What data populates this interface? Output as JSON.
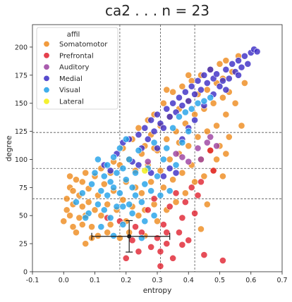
{
  "chart_data": {
    "type": "scatter",
    "title": "ca2 . . . n = 23",
    "xlabel": "entropy",
    "ylabel": "degree",
    "xlim": [
      -0.1,
      0.7
    ],
    "ylim": [
      0,
      220
    ],
    "xticks": [
      "-0.1",
      "0.0",
      "0.1",
      "0.2",
      "0.3",
      "0.4",
      "0.5",
      "0.6",
      "0.7"
    ],
    "yticks": [
      "0",
      "25",
      "50",
      "75",
      "100",
      "125",
      "150",
      "175",
      "200"
    ],
    "grid": false,
    "legend": {
      "title": "affil",
      "placement": "top-left"
    },
    "vertical_lines": [
      0.18,
      0.31,
      0.42
    ],
    "horizontal_lines": [
      65,
      92,
      124
    ],
    "series": [
      {
        "name": "Somatomotor",
        "color": "#ee8a1c",
        "points": [
          [
            0.0,
            45
          ],
          [
            0.01,
            55
          ],
          [
            0.01,
            65
          ],
          [
            0.02,
            50
          ],
          [
            0.02,
            75
          ],
          [
            0.03,
            40
          ],
          [
            0.03,
            60
          ],
          [
            0.03,
            72
          ],
          [
            0.04,
            35
          ],
          [
            0.04,
            82
          ],
          [
            0.05,
            48
          ],
          [
            0.05,
            68
          ],
          [
            0.06,
            58
          ],
          [
            0.06,
            80
          ],
          [
            0.07,
            25
          ],
          [
            0.07,
            50
          ],
          [
            0.07,
            88
          ],
          [
            0.08,
            62
          ],
          [
            0.08,
            74
          ],
          [
            0.09,
            40
          ],
          [
            0.1,
            55
          ],
          [
            0.1,
            85
          ],
          [
            0.11,
            68
          ],
          [
            0.12,
            50
          ],
          [
            0.12,
            92
          ],
          [
            0.13,
            78
          ],
          [
            0.14,
            60
          ],
          [
            0.15,
            88
          ],
          [
            0.15,
            42
          ],
          [
            0.16,
            72
          ],
          [
            0.17,
            55
          ],
          [
            0.18,
            95
          ],
          [
            0.19,
            64
          ],
          [
            0.19,
            110
          ],
          [
            0.2,
            45
          ],
          [
            0.2,
            80
          ],
          [
            0.21,
            100
          ],
          [
            0.22,
            58
          ],
          [
            0.22,
            118
          ],
          [
            0.23,
            75
          ],
          [
            0.23,
            90
          ],
          [
            0.24,
            50
          ],
          [
            0.24,
            128
          ],
          [
            0.25,
            105
          ],
          [
            0.25,
            70
          ],
          [
            0.26,
            112
          ],
          [
            0.26,
            55
          ],
          [
            0.27,
            135
          ],
          [
            0.27,
            95
          ],
          [
            0.28,
            80
          ],
          [
            0.28,
            122
          ],
          [
            0.29,
            60
          ],
          [
            0.29,
            140
          ],
          [
            0.3,
            108
          ],
          [
            0.3,
            45
          ],
          [
            0.31,
            130
          ],
          [
            0.31,
            90
          ],
          [
            0.32,
            150
          ],
          [
            0.32,
            75
          ],
          [
            0.33,
            118
          ],
          [
            0.33,
            55
          ],
          [
            0.34,
            138
          ],
          [
            0.34,
            100
          ],
          [
            0.35,
            160
          ],
          [
            0.35,
            82
          ],
          [
            0.36,
            125
          ],
          [
            0.36,
            62
          ],
          [
            0.37,
            145
          ],
          [
            0.37,
            105
          ],
          [
            0.38,
            165
          ],
          [
            0.38,
            88
          ],
          [
            0.39,
            132
          ],
          [
            0.39,
            70
          ],
          [
            0.4,
            152
          ],
          [
            0.4,
            112
          ],
          [
            0.41,
            170
          ],
          [
            0.41,
            95
          ],
          [
            0.42,
            140
          ],
          [
            0.42,
            80
          ],
          [
            0.43,
            158
          ],
          [
            0.43,
            120
          ],
          [
            0.44,
            175
          ],
          [
            0.44,
            100
          ],
          [
            0.45,
            145
          ],
          [
            0.45,
            85
          ],
          [
            0.46,
            162
          ],
          [
            0.46,
            125
          ],
          [
            0.47,
            180
          ],
          [
            0.47,
            108
          ],
          [
            0.48,
            150
          ],
          [
            0.48,
            90
          ],
          [
            0.49,
            168
          ],
          [
            0.49,
            130
          ],
          [
            0.5,
            185
          ],
          [
            0.5,
            112
          ],
          [
            0.51,
            155
          ],
          [
            0.51,
            172
          ],
          [
            0.52,
            140
          ],
          [
            0.52,
            188
          ],
          [
            0.53,
            160
          ],
          [
            0.53,
            120
          ],
          [
            0.54,
            178
          ],
          [
            0.55,
            150
          ],
          [
            0.56,
            192
          ],
          [
            0.57,
            130
          ],
          [
            0.58,
            168
          ],
          [
            0.02,
            85
          ],
          [
            0.06,
            42
          ],
          [
            0.09,
            30
          ],
          [
            0.11,
            32
          ],
          [
            0.14,
            35
          ],
          [
            0.16,
            98
          ],
          [
            0.18,
            30
          ],
          [
            0.21,
            35
          ],
          [
            0.26,
            32
          ],
          [
            0.29,
            110
          ],
          [
            0.33,
            162
          ],
          [
            0.37,
            115
          ],
          [
            0.4,
            175
          ],
          [
            0.44,
            38
          ],
          [
            0.46,
            60
          ],
          [
            0.49,
            100
          ],
          [
            0.51,
            85
          ],
          [
            0.52,
            105
          ]
        ]
      },
      {
        "name": "Prefrontal",
        "color": "#e0202e",
        "points": [
          [
            0.14,
            48
          ],
          [
            0.18,
            45
          ],
          [
            0.2,
            12
          ],
          [
            0.22,
            28
          ],
          [
            0.23,
            40
          ],
          [
            0.25,
            35
          ],
          [
            0.27,
            55
          ],
          [
            0.28,
            22
          ],
          [
            0.29,
            65
          ],
          [
            0.3,
            30
          ],
          [
            0.31,
            18
          ],
          [
            0.31,
            5
          ],
          [
            0.32,
            42
          ],
          [
            0.33,
            25
          ],
          [
            0.34,
            58
          ],
          [
            0.35,
            12
          ],
          [
            0.36,
            70
          ],
          [
            0.37,
            35
          ],
          [
            0.38,
            24
          ],
          [
            0.38,
            48
          ],
          [
            0.39,
            62
          ],
          [
            0.4,
            28
          ],
          [
            0.41,
            75
          ],
          [
            0.42,
            52
          ],
          [
            0.43,
            68
          ],
          [
            0.44,
            80
          ],
          [
            0.45,
            15
          ],
          [
            0.47,
            108
          ],
          [
            0.48,
            90
          ],
          [
            0.51,
            10
          ],
          [
            0.24,
            18
          ],
          [
            0.33,
            35
          ]
        ]
      },
      {
        "name": "Auditory",
        "color": "#9a3fa0",
        "points": [
          [
            0.36,
            105
          ],
          [
            0.38,
            102
          ],
          [
            0.4,
            98
          ],
          [
            0.43,
            110
          ],
          [
            0.44,
            100
          ],
          [
            0.46,
            115
          ],
          [
            0.47,
            120
          ],
          [
            0.49,
            112
          ],
          [
            0.27,
            98
          ]
        ]
      },
      {
        "name": "Medial",
        "color": "#3a2bc4",
        "points": [
          [
            0.17,
            105
          ],
          [
            0.19,
            115
          ],
          [
            0.21,
            118
          ],
          [
            0.22,
            98
          ],
          [
            0.24,
            122
          ],
          [
            0.25,
            110
          ],
          [
            0.26,
            128
          ],
          [
            0.27,
            118
          ],
          [
            0.28,
            135
          ],
          [
            0.29,
            125
          ],
          [
            0.3,
            140
          ],
          [
            0.31,
            132
          ],
          [
            0.32,
            128
          ],
          [
            0.33,
            145
          ],
          [
            0.34,
            138
          ],
          [
            0.35,
            150
          ],
          [
            0.36,
            142
          ],
          [
            0.37,
            155
          ],
          [
            0.38,
            148
          ],
          [
            0.39,
            160
          ],
          [
            0.4,
            152
          ],
          [
            0.41,
            165
          ],
          [
            0.42,
            158
          ],
          [
            0.43,
            170
          ],
          [
            0.44,
            162
          ],
          [
            0.45,
            175
          ],
          [
            0.46,
            168
          ],
          [
            0.47,
            180
          ],
          [
            0.48,
            172
          ],
          [
            0.49,
            176
          ],
          [
            0.5,
            165
          ],
          [
            0.51,
            170
          ],
          [
            0.52,
            180
          ],
          [
            0.53,
            172
          ],
          [
            0.54,
            185
          ],
          [
            0.55,
            178
          ],
          [
            0.56,
            188
          ],
          [
            0.57,
            182
          ],
          [
            0.58,
            192
          ],
          [
            0.59,
            185
          ],
          [
            0.6,
            195
          ],
          [
            0.61,
            198
          ],
          [
            0.62,
            196
          ],
          [
            0.52,
            162
          ],
          [
            0.48,
            158
          ],
          [
            0.28,
            88
          ],
          [
            0.32,
            85
          ],
          [
            0.34,
            92
          ],
          [
            0.36,
            88
          ],
          [
            0.15,
            90
          ],
          [
            0.13,
            95
          ],
          [
            0.38,
            118
          ],
          [
            0.4,
            128
          ],
          [
            0.42,
            135
          ],
          [
            0.45,
            148
          ],
          [
            0.56,
            175
          ],
          [
            0.3,
            110
          ],
          [
            0.24,
            95
          ]
        ]
      },
      {
        "name": "Visual",
        "color": "#1fa0e8",
        "points": [
          [
            0.04,
            62
          ],
          [
            0.06,
            70
          ],
          [
            0.08,
            52
          ],
          [
            0.09,
            78
          ],
          [
            0.1,
            88
          ],
          [
            0.11,
            60
          ],
          [
            0.12,
            72
          ],
          [
            0.13,
            85
          ],
          [
            0.13,
            55
          ],
          [
            0.14,
            95
          ],
          [
            0.14,
            68
          ],
          [
            0.15,
            80
          ],
          [
            0.15,
            48
          ],
          [
            0.16,
            102
          ],
          [
            0.16,
            75
          ],
          [
            0.17,
            88
          ],
          [
            0.17,
            58
          ],
          [
            0.18,
            110
          ],
          [
            0.18,
            70
          ],
          [
            0.19,
            92
          ],
          [
            0.19,
            42
          ],
          [
            0.2,
            118
          ],
          [
            0.2,
            82
          ],
          [
            0.21,
            60
          ],
          [
            0.21,
            100
          ],
          [
            0.22,
            75
          ],
          [
            0.22,
            52
          ],
          [
            0.23,
            88
          ],
          [
            0.23,
            68
          ],
          [
            0.24,
            108
          ],
          [
            0.25,
            62
          ],
          [
            0.26,
            78
          ],
          [
            0.26,
            45
          ],
          [
            0.27,
            92
          ],
          [
            0.28,
            72
          ],
          [
            0.29,
            115
          ],
          [
            0.29,
            50
          ],
          [
            0.3,
            85
          ],
          [
            0.31,
            68
          ],
          [
            0.32,
            100
          ],
          [
            0.33,
            110
          ],
          [
            0.34,
            72
          ],
          [
            0.35,
            128
          ],
          [
            0.36,
            95
          ],
          [
            0.37,
            138
          ],
          [
            0.38,
            115
          ],
          [
            0.39,
            142
          ],
          [
            0.4,
            125
          ],
          [
            0.41,
            145
          ],
          [
            0.43,
            150
          ],
          [
            0.45,
            152
          ],
          [
            0.47,
            155
          ],
          [
            0.12,
            40
          ],
          [
            0.16,
            32
          ],
          [
            0.19,
            58
          ],
          [
            0.25,
            30
          ],
          [
            0.07,
            48
          ],
          [
            0.11,
            100
          ]
        ]
      },
      {
        "name": "Lateral",
        "color": "#f2ee0c",
        "points": [
          [
            0.26,
            90
          ]
        ]
      }
    ],
    "error_bar": {
      "x": 0.21,
      "y": 31.5,
      "xerr": [
        0.12,
        0.13
      ],
      "yerr": [
        14,
        14
      ]
    }
  }
}
